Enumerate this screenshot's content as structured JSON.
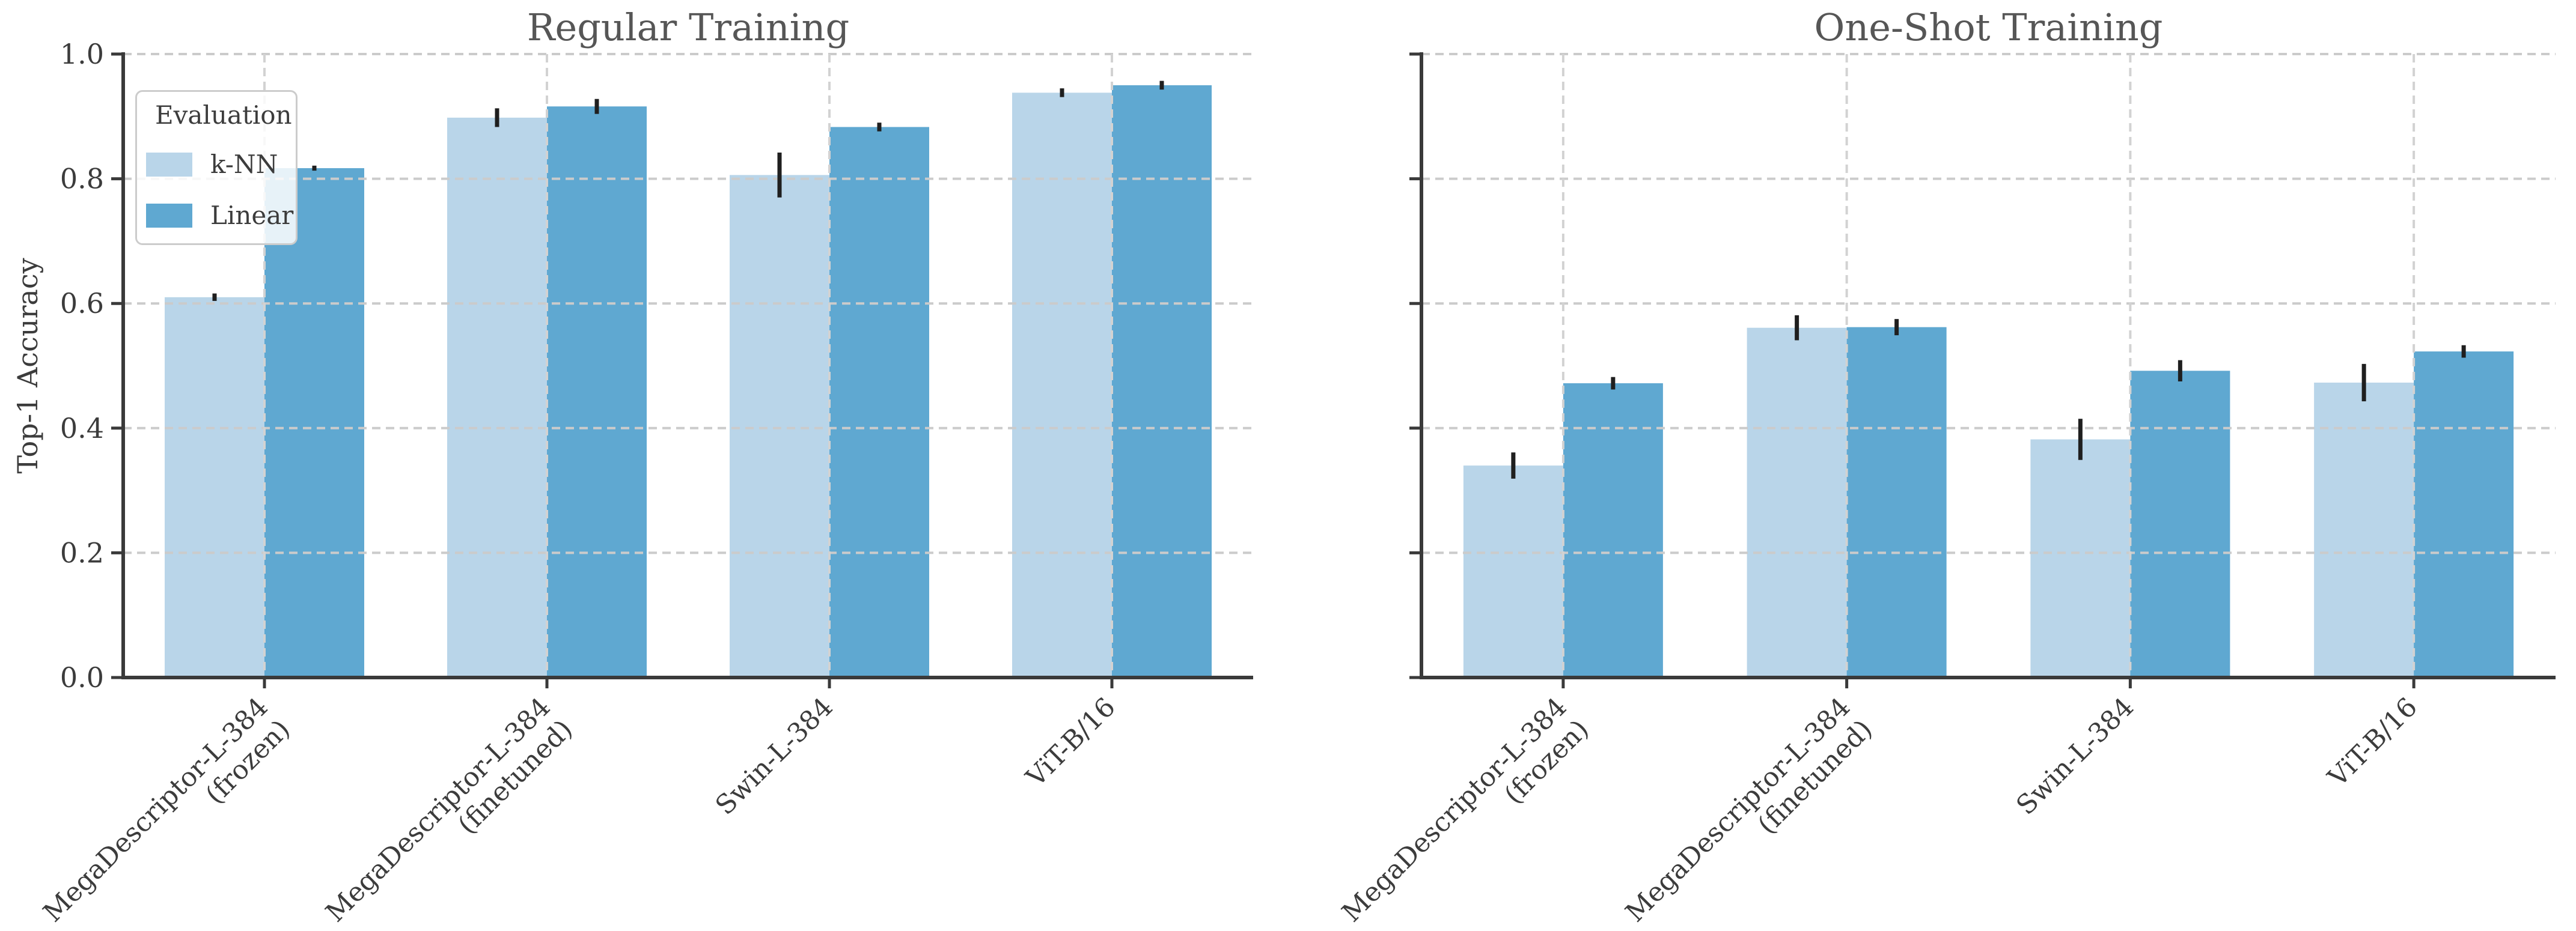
{
  "figure": {
    "background": "#ffffff",
    "ylabel": "Top-1 Accuracy",
    "legend": {
      "title": "Evaluation",
      "items": [
        {
          "label": "k-NN",
          "color": "#b9d5e9"
        },
        {
          "label": "Linear",
          "color": "#5fa8d1"
        }
      ]
    }
  },
  "chart_data": [
    {
      "type": "bar",
      "title": "Regular Training",
      "ylabel": "Top-1 Accuracy",
      "ylim": [
        0.0,
        1.0
      ],
      "yticks": [
        0.0,
        0.2,
        0.4,
        0.6,
        0.8,
        1.0
      ],
      "grid": true,
      "legend_position": "upper left",
      "show_ytick_labels": true,
      "categories": [
        [
          "MegaDescriptor-L-384",
          "(frozen)"
        ],
        [
          "MegaDescriptor-L-384",
          "(finetuned)"
        ],
        [
          "Swin-L-384"
        ],
        [
          "ViT-B/16"
        ]
      ],
      "series": [
        {
          "name": "k-NN",
          "color": "#b9d5e9",
          "values": [
            0.61,
            0.898,
            0.806,
            0.938
          ],
          "errors": [
            0.006,
            0.015,
            0.036,
            0.007
          ]
        },
        {
          "name": "Linear",
          "color": "#5fa8d1",
          "values": [
            0.817,
            0.916,
            0.883,
            0.95
          ],
          "errors": [
            0.004,
            0.012,
            0.007,
            0.007
          ]
        }
      ]
    },
    {
      "type": "bar",
      "title": "One-Shot Training",
      "ylabel": "",
      "ylim": [
        0.0,
        1.0
      ],
      "yticks": [
        0.0,
        0.2,
        0.4,
        0.6,
        0.8,
        1.0
      ],
      "grid": true,
      "legend_position": null,
      "show_ytick_labels": false,
      "categories": [
        [
          "MegaDescriptor-L-384",
          "(frozen)"
        ],
        [
          "MegaDescriptor-L-384",
          "(finetuned)"
        ],
        [
          "Swin-L-384"
        ],
        [
          "ViT-B/16"
        ]
      ],
      "series": [
        {
          "name": "k-NN",
          "color": "#b9d5e9",
          "values": [
            0.34,
            0.561,
            0.382,
            0.473
          ],
          "errors": [
            0.021,
            0.02,
            0.033,
            0.03
          ]
        },
        {
          "name": "Linear",
          "color": "#5fa8d1",
          "values": [
            0.472,
            0.562,
            0.492,
            0.523
          ],
          "errors": [
            0.01,
            0.013,
            0.017,
            0.01
          ]
        }
      ]
    }
  ],
  "style": {
    "grid_color": "#cbcbcb",
    "vgrid_color": "#d2d2d2",
    "spine_color": "#3a3a3a",
    "tick_color": "#3a3a3a",
    "tick_label_color": "#3c3c3c",
    "title_color": "#565656",
    "errorbar_color": "#1f1f1f"
  }
}
